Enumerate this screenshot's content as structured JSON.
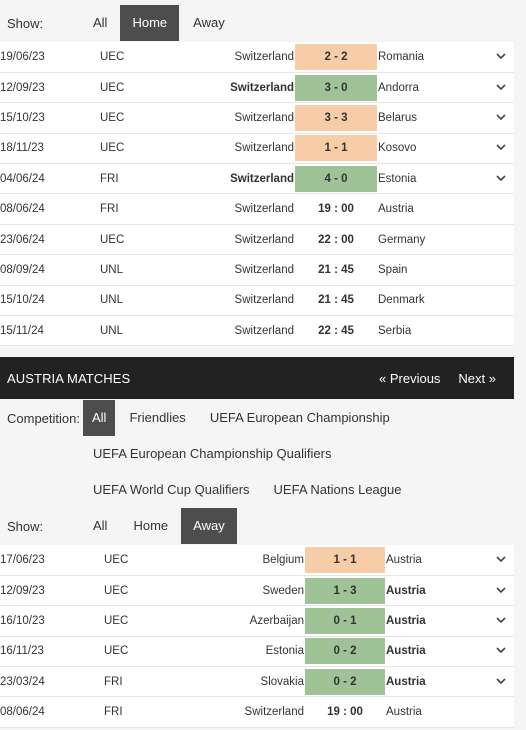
{
  "switzerland_filter": {
    "label": "Show:",
    "tabs": [
      {
        "label": "All",
        "active": false
      },
      {
        "label": "Home",
        "active": true
      },
      {
        "label": "Away",
        "active": false
      }
    ]
  },
  "switzerland_matches": [
    {
      "date": "19/06/23",
      "comp": "UEC",
      "home": "Switzerland",
      "score": "2 - 2",
      "away": "Romania",
      "result": "draw",
      "home_bold": false,
      "away_bold": false,
      "expandable": true
    },
    {
      "date": "12/09/23",
      "comp": "UEC",
      "home": "Switzerland",
      "score": "3 - 0",
      "away": "Andorra",
      "result": "win",
      "home_bold": true,
      "away_bold": false,
      "expandable": true
    },
    {
      "date": "15/10/23",
      "comp": "UEC",
      "home": "Switzerland",
      "score": "3 - 3",
      "away": "Belarus",
      "result": "draw",
      "home_bold": false,
      "away_bold": false,
      "expandable": true
    },
    {
      "date": "18/11/23",
      "comp": "UEC",
      "home": "Switzerland",
      "score": "1 - 1",
      "away": "Kosovo",
      "result": "draw",
      "home_bold": false,
      "away_bold": false,
      "expandable": true
    },
    {
      "date": "04/06/24",
      "comp": "FRI",
      "home": "Switzerland",
      "score": "4 - 0",
      "away": "Estonia",
      "result": "win",
      "home_bold": true,
      "away_bold": false,
      "expandable": true
    },
    {
      "date": "08/06/24",
      "comp": "FRI",
      "home": "Switzerland",
      "score": "19 : 00",
      "away": "Austria",
      "result": "upcoming",
      "home_bold": false,
      "away_bold": false,
      "expandable": false
    },
    {
      "date": "23/06/24",
      "comp": "UEC",
      "home": "Switzerland",
      "score": "22 : 00",
      "away": "Germany",
      "result": "upcoming",
      "home_bold": false,
      "away_bold": false,
      "expandable": false
    },
    {
      "date": "08/09/24",
      "comp": "UNL",
      "home": "Switzerland",
      "score": "21 : 45",
      "away": "Spain",
      "result": "upcoming",
      "home_bold": false,
      "away_bold": false,
      "expandable": false
    },
    {
      "date": "15/10/24",
      "comp": "UNL",
      "home": "Switzerland",
      "score": "21 : 45",
      "away": "Denmark",
      "result": "upcoming",
      "home_bold": false,
      "away_bold": false,
      "expandable": false
    },
    {
      "date": "15/11/24",
      "comp": "UNL",
      "home": "Switzerland",
      "score": "22 : 45",
      "away": "Serbia",
      "result": "upcoming",
      "home_bold": false,
      "away_bold": false,
      "expandable": false
    }
  ],
  "austria_header": {
    "title": "AUSTRIA MATCHES",
    "previous": "« Previous",
    "next": "Next »"
  },
  "competition_filter": {
    "label": "Competition:",
    "row1": [
      {
        "label": "All",
        "active": true
      },
      {
        "label": "Friendlies",
        "active": false
      },
      {
        "label": "UEFA European Championship",
        "active": false
      }
    ],
    "row2": [
      {
        "label": "UEFA European Championship Qualifiers",
        "active": false
      }
    ],
    "row3": [
      {
        "label": "UEFA World Cup Qualifiers",
        "active": false
      },
      {
        "label": "UEFA Nations League",
        "active": false
      }
    ]
  },
  "austria_filter": {
    "label": "Show:",
    "tabs": [
      {
        "label": "All",
        "active": false
      },
      {
        "label": "Home",
        "active": false
      },
      {
        "label": "Away",
        "active": true
      }
    ]
  },
  "austria_matches": [
    {
      "date": "17/06/23",
      "comp": "UEC",
      "home": "Belgium",
      "score": "1 - 1",
      "away": "Austria",
      "result": "draw",
      "home_bold": false,
      "away_bold": false,
      "expandable": true
    },
    {
      "date": "12/09/23",
      "comp": "UEC",
      "home": "Sweden",
      "score": "1 - 3",
      "away": "Austria",
      "result": "win",
      "home_bold": false,
      "away_bold": true,
      "expandable": true
    },
    {
      "date": "16/10/23",
      "comp": "UEC",
      "home": "Azerbaijan",
      "score": "0 - 1",
      "away": "Austria",
      "result": "win",
      "home_bold": false,
      "away_bold": true,
      "expandable": true
    },
    {
      "date": "16/11/23",
      "comp": "UEC",
      "home": "Estonia",
      "score": "0 - 2",
      "away": "Austria",
      "result": "win",
      "home_bold": false,
      "away_bold": true,
      "expandable": true
    },
    {
      "date": "23/03/24",
      "comp": "FRI",
      "home": "Slovakia",
      "score": "0 - 2",
      "away": "Austria",
      "result": "win",
      "home_bold": false,
      "away_bold": true,
      "expandable": true
    },
    {
      "date": "08/06/24",
      "comp": "FRI",
      "home": "Switzerland",
      "score": "19 : 00",
      "away": "Austria",
      "result": "upcoming",
      "home_bold": false,
      "away_bold": false,
      "expandable": false
    }
  ],
  "colors": {
    "draw": "#f7cda7",
    "win": "#9fc397",
    "active_tab": "#4d4d4d",
    "header_bg": "#222222"
  },
  "icons": {
    "expand": "chevron-down-icon"
  }
}
